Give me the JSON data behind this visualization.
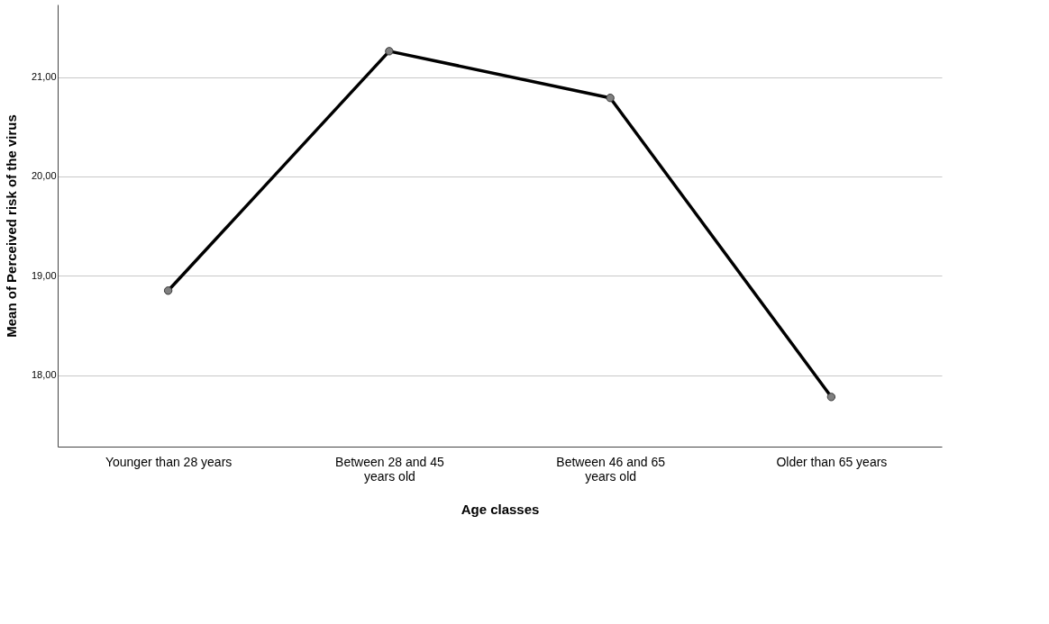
{
  "chart_data": {
    "type": "line",
    "xlabel": "Age classes",
    "ylabel": "Mean of Perceived risk of the virus",
    "categories": [
      "Younger than 28 years",
      "Between 28 and 45 years old",
      "Between 46 and 65 years old",
      "Older than 65 years"
    ],
    "series": [
      {
        "color": "#000000",
        "values": [
          18.85,
          21.26,
          20.79,
          17.78
        ]
      }
    ],
    "ylim": [
      17.28,
      21.73
    ],
    "yticks": [
      {
        "value": 18,
        "label": "18,00"
      },
      {
        "value": 19,
        "label": "19,00"
      },
      {
        "value": 20,
        "label": "20,00"
      },
      {
        "value": 21,
        "label": "21,00"
      }
    ],
    "grid": "y",
    "marker": "circle",
    "line_style": "solid"
  }
}
